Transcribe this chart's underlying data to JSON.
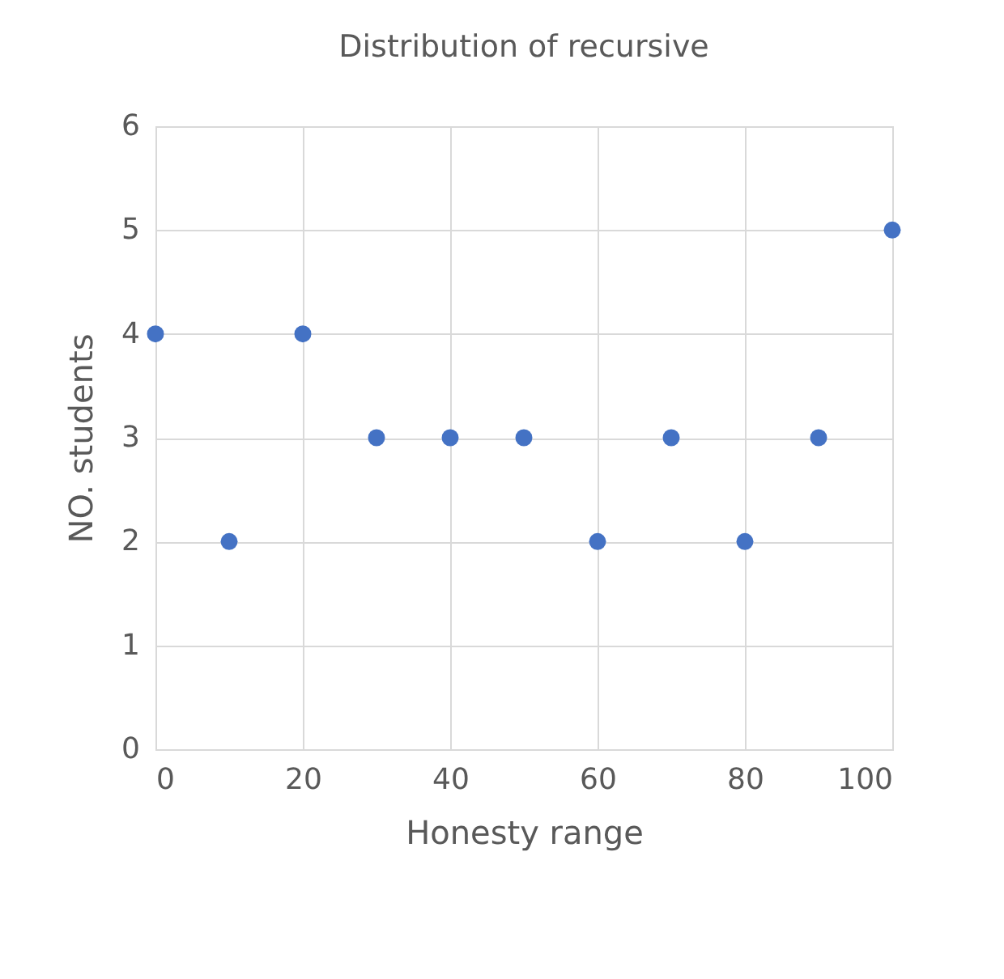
{
  "chart_data": {
    "type": "scatter",
    "title": "Distribution of recursive",
    "xlabel": "Honesty range",
    "ylabel": "NO. students",
    "x": [
      0,
      10,
      20,
      30,
      40,
      50,
      60,
      70,
      80,
      90,
      100
    ],
    "series": [
      {
        "color": "#4472c4",
        "values": [
          4,
          2,
          4,
          3,
          3,
          3,
          2,
          3,
          2,
          3,
          5
        ]
      }
    ],
    "xlim": [
      0,
      100
    ],
    "xticks": [
      0,
      20,
      40,
      60,
      80,
      100
    ],
    "ylim": [
      0,
      6
    ],
    "yticks": [
      0,
      1,
      2,
      3,
      4,
      5,
      6
    ],
    "grid": true,
    "marker": "circle"
  }
}
